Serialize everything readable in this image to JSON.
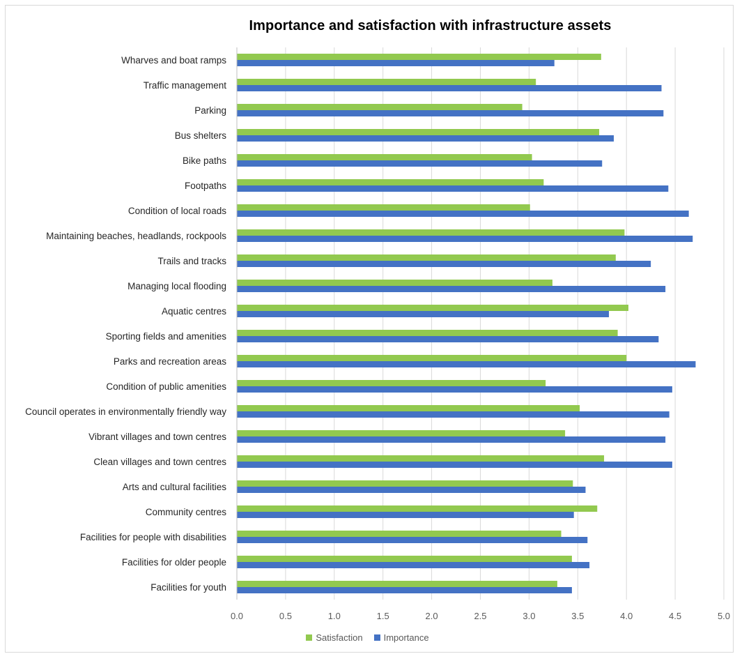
{
  "chart_data": {
    "type": "bar",
    "orientation": "horizontal",
    "title": "Importance and satisfaction with infrastructure assets",
    "categories": [
      "Wharves and boat ramps",
      "Traffic management",
      "Parking",
      "Bus shelters",
      "Bike paths",
      "Footpaths",
      "Condition of local roads",
      "Maintaining beaches, headlands, rockpools",
      "Trails and tracks",
      "Managing local flooding",
      "Aquatic centres",
      "Sporting fields and amenities",
      "Parks and recreation areas",
      "Condition of public amenities",
      "Council operates in environmentally friendly way",
      "Vibrant villages and town centres",
      "Clean villages and town centres",
      "Arts and cultural facilities",
      "Community centres",
      "Facilities for people with disabilities",
      "Facilities for older people",
      "Facilities for youth"
    ],
    "series": [
      {
        "name": "Satisfaction",
        "color": "#92c94f",
        "values": [
          3.74,
          3.07,
          2.93,
          3.72,
          3.03,
          3.15,
          3.01,
          3.98,
          3.89,
          3.24,
          4.02,
          3.91,
          4.0,
          3.17,
          3.52,
          3.37,
          3.77,
          3.45,
          3.7,
          3.33,
          3.44,
          3.29
        ]
      },
      {
        "name": "Importance",
        "color": "#4472c4",
        "values": [
          3.26,
          4.36,
          4.38,
          3.87,
          3.75,
          4.43,
          4.64,
          4.68,
          4.25,
          4.4,
          3.82,
          4.33,
          4.71,
          4.47,
          4.44,
          4.4,
          4.47,
          3.58,
          3.46,
          3.6,
          3.62,
          3.44
        ]
      }
    ],
    "xlim": [
      0,
      5.0
    ],
    "xticks": [
      "0.0",
      "0.5",
      "1.0",
      "1.5",
      "2.0",
      "2.5",
      "3.0",
      "3.5",
      "4.0",
      "4.5",
      "5.0"
    ],
    "xlabel": "",
    "ylabel": "",
    "grid": true,
    "legend_position": "bottom"
  }
}
